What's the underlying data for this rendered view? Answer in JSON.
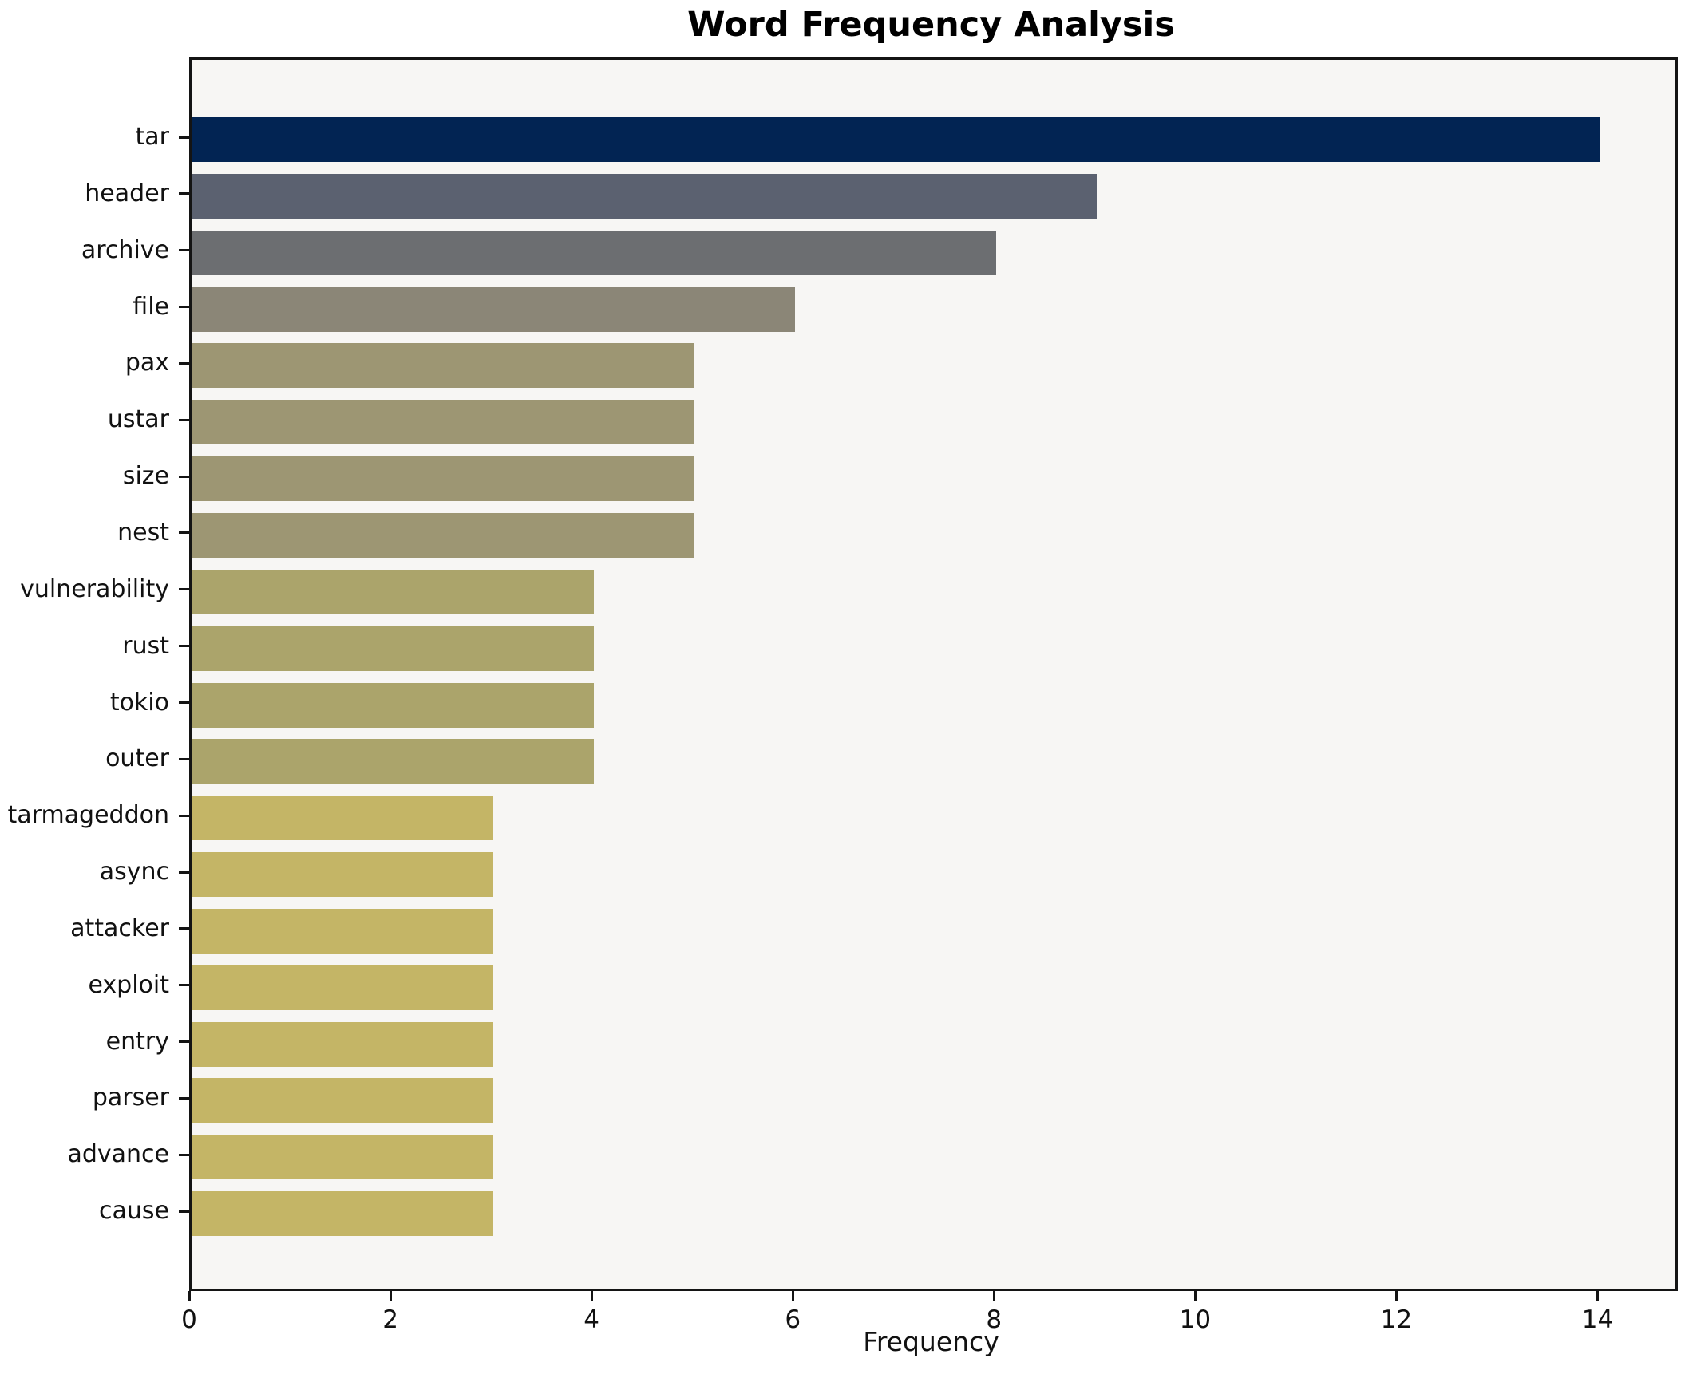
{
  "figure": {
    "title": "Word Frequency Analysis",
    "xlabel": "Frequency"
  },
  "chart_data": {
    "type": "bar",
    "orientation": "horizontal",
    "title": "Word Frequency Analysis",
    "xlabel": "Frequency",
    "ylabel": "",
    "categories": [
      "tar",
      "header",
      "archive",
      "file",
      "pax",
      "ustar",
      "size",
      "nest",
      "vulnerability",
      "rust",
      "tokio",
      "outer",
      "tarmageddon",
      "async",
      "attacker",
      "exploit",
      "entry",
      "parser",
      "advance",
      "cause"
    ],
    "values": [
      14,
      9,
      8,
      6,
      5,
      5,
      5,
      5,
      4,
      4,
      4,
      4,
      3,
      3,
      3,
      3,
      3,
      3,
      3,
      3
    ],
    "bar_colors": [
      "#022453",
      "#5b6170",
      "#6c6e71",
      "#8b8677",
      "#9d9673",
      "#9d9673",
      "#9d9673",
      "#9d9673",
      "#aba46b",
      "#aba46b",
      "#aba46b",
      "#aba46b",
      "#c4b566",
      "#c4b566",
      "#c4b566",
      "#c4b566",
      "#c4b566",
      "#c4b566",
      "#c4b566",
      "#c4b566"
    ],
    "xlim": [
      0,
      14.75
    ],
    "x_ticks": [
      0,
      2,
      4,
      6,
      8,
      10,
      12,
      14
    ],
    "grid": false,
    "legend_position": "none",
    "plot_background": "#f7f6f4",
    "figure_background": "#ffffff",
    "spine_color": "#141414",
    "title_color": "#000000",
    "tick_label_color": "#111111"
  }
}
